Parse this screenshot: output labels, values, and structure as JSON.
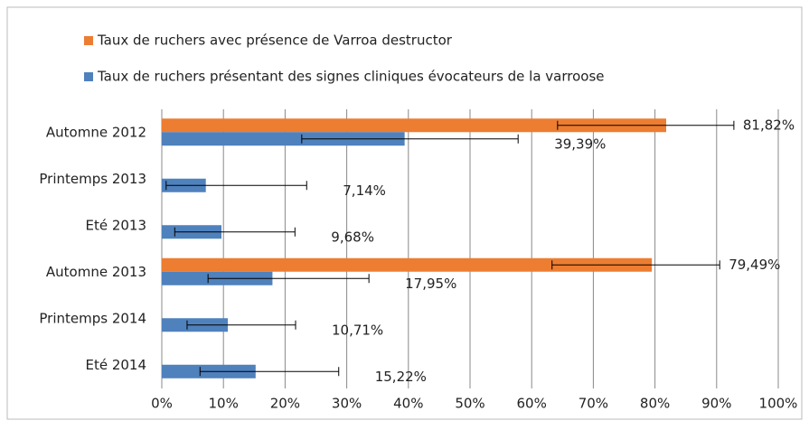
{
  "chart_data": {
    "type": "bar",
    "orientation": "horizontal",
    "categories": [
      "Automne 2012",
      "Printemps 2013",
      "Eté 2013",
      "Automne 2013",
      "Printemps 2014",
      "Eté 2014"
    ],
    "series": [
      {
        "name": "Taux de ruchers avec présence de Varroa destructor",
        "color": "#ed7d31",
        "values": [
          81.82,
          null,
          null,
          79.49,
          null,
          null
        ],
        "value_labels": [
          "81,82%",
          null,
          null,
          "79,49%",
          null,
          null
        ],
        "ci_low": [
          64.2,
          null,
          null,
          63.3,
          null,
          null
        ],
        "ci_high": [
          92.8,
          null,
          null,
          90.5,
          null,
          null
        ]
      },
      {
        "name": "Taux de ruchers présentant des signes cliniques évocateurs de la varroose",
        "color": "#4f81bd",
        "values": [
          39.39,
          7.14,
          9.68,
          17.95,
          10.71,
          15.22
        ],
        "value_labels": [
          "39,39%",
          "7,14%",
          "9,68%",
          "17,95%",
          "10,71%",
          "15,22%"
        ],
        "ci_low": [
          22.7,
          0.7,
          2.1,
          7.5,
          4.1,
          6.2
        ],
        "ci_high": [
          57.8,
          23.5,
          21.6,
          33.6,
          21.7,
          28.7
        ]
      }
    ],
    "xlim": [
      0,
      100
    ],
    "xticks": [
      {
        "value": 0,
        "label": "0%"
      },
      {
        "value": 10,
        "label": "10%"
      },
      {
        "value": 20,
        "label": "20%"
      },
      {
        "value": 30,
        "label": "30%"
      },
      {
        "value": 40,
        "label": "40%"
      },
      {
        "value": 50,
        "label": "50%"
      },
      {
        "value": 60,
        "label": "60%"
      },
      {
        "value": 70,
        "label": "70%"
      },
      {
        "value": 80,
        "label": "80%"
      },
      {
        "value": 90,
        "label": "90%"
      },
      {
        "value": 100,
        "label": "100%"
      }
    ],
    "grid": true,
    "legend": "top"
  }
}
